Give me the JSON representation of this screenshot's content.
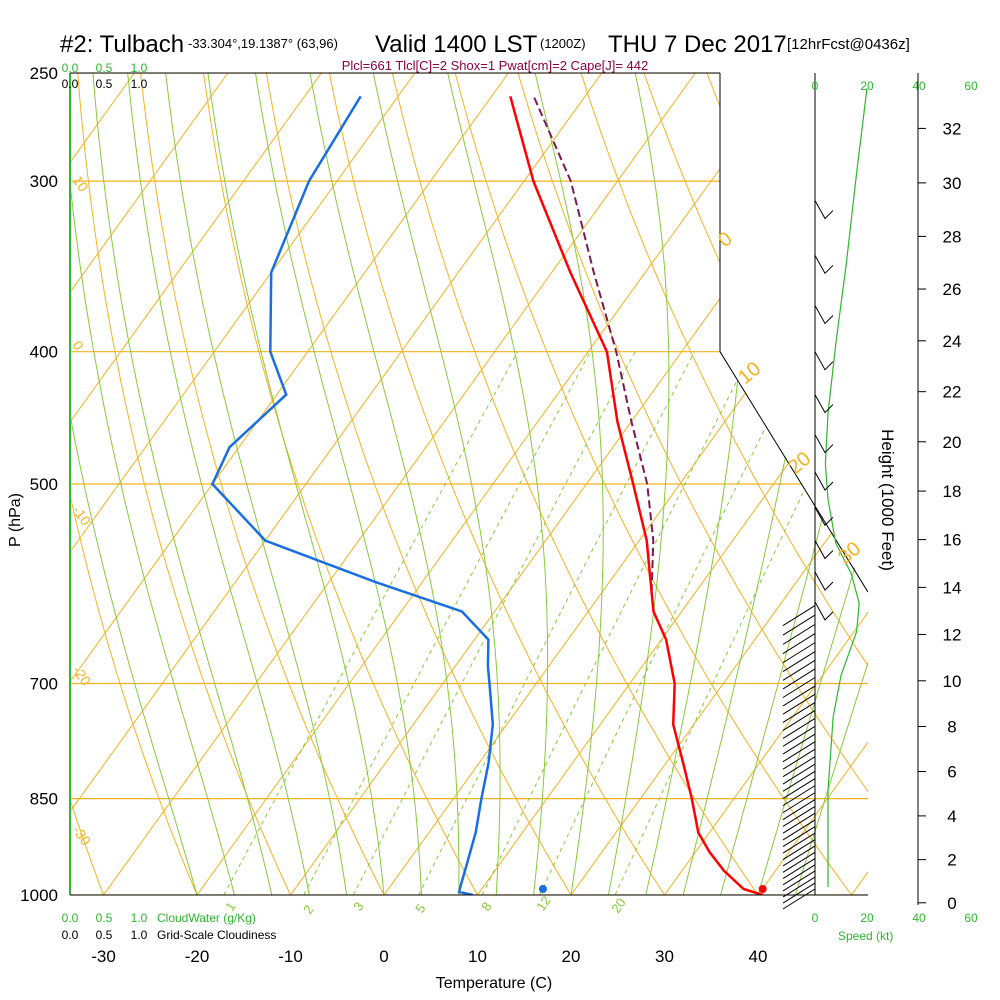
{
  "header": {
    "station": "#2: Tulbach",
    "coords": "-33.304°,19.1387° (63,96)",
    "valid": "Valid 1400 LST",
    "zulu": "(1200Z)",
    "date": "THU 7 Dec 2017",
    "forecast": "[12hrFcst@0436z]"
  },
  "params_line": "Plcl=661 Tlcl[C]=2 Shox=1 Pwat[cm]=2 Cape[J]= 442",
  "colors": {
    "temperature": "#ff0000",
    "dewpoint": "#1a6fe0",
    "parcel": "#7a1a52",
    "isotherm": "#f3b221",
    "dry_adiabat": "#f3b221",
    "moist_adiabat": "#88c93a",
    "cloud_green": "#2db82d"
  },
  "chart_data": {
    "type": "skew-t",
    "title": "#2: Tulbach Valid 1400 LST (1200Z) THU 7 Dec 2017",
    "xlabel": "Temperature (C)",
    "ylabel": "P (hPa)",
    "right_label": "Height (1000 Feet)",
    "x_ticks": [
      -30,
      -20,
      -10,
      0,
      10,
      20,
      30,
      40
    ],
    "p_ticks": [
      250,
      300,
      400,
      500,
      700,
      850,
      1000
    ],
    "height_ticks": [
      0,
      2,
      4,
      6,
      8,
      10,
      12,
      14,
      16,
      18,
      20,
      22,
      24,
      26,
      28,
      30,
      32
    ],
    "cloud_scale_top": [
      "0.0",
      "0.5",
      "1.0"
    ],
    "cloud_scale_top2": [
      "0.0",
      "0.5",
      "1.0"
    ],
    "cloud_scale_bottom": [
      "0.0",
      "0.5",
      "1.0"
    ],
    "cloud_scale_bottom2": [
      "0.0",
      "0.5",
      "1.0"
    ],
    "cloudwater_label": "CloudWater (g/Kg)",
    "cloudiness_label": "Grid-Scale Cloudiness",
    "speed_ticks": [
      "0",
      "20",
      "40",
      "60"
    ],
    "speed_ticks_top": [
      "0",
      "20",
      "40",
      "60"
    ],
    "speed_label": "Speed (kt)",
    "isotherm_labels": [
      "10",
      "0",
      "-10",
      "-20",
      "-30"
    ],
    "dry_labels": [
      "0",
      "10",
      "20",
      "30"
    ],
    "mixing_ratio_labels": [
      "1",
      "2",
      "3",
      "5",
      "8",
      "12",
      "20"
    ],
    "mixing_ratios": [
      1,
      2,
      3,
      5,
      8,
      12,
      20
    ],
    "temperature": [
      {
        "p": 1000,
        "t": 40.5
      },
      {
        "p": 990,
        "t": 38
      },
      {
        "p": 960,
        "t": 34.5
      },
      {
        "p": 930,
        "t": 31.5
      },
      {
        "p": 900,
        "t": 28.8
      },
      {
        "p": 850,
        "t": 25.5
      },
      {
        "p": 800,
        "t": 21.8
      },
      {
        "p": 750,
        "t": 17.8
      },
      {
        "p": 700,
        "t": 14.8
      },
      {
        "p": 650,
        "t": 10.5
      },
      {
        "p": 620,
        "t": 7.0
      },
      {
        "p": 600,
        "t": 5.3
      },
      {
        "p": 550,
        "t": 0.8
      },
      {
        "p": 500,
        "t": -5.0
      },
      {
        "p": 450,
        "t": -11.5
      },
      {
        "p": 400,
        "t": -18.0
      },
      {
        "p": 350,
        "t": -28.0
      },
      {
        "p": 300,
        "t": -39.0
      },
      {
        "p": 260,
        "t": -48.0
      }
    ],
    "dewpoint": [
      {
        "p": 1000,
        "t": 9.5
      },
      {
        "p": 995,
        "t": 7.8
      },
      {
        "p": 985,
        "t": 7.5
      },
      {
        "p": 950,
        "t": 6.5
      },
      {
        "p": 900,
        "t": 5.0
      },
      {
        "p": 850,
        "t": 3.0
      },
      {
        "p": 800,
        "t": 1.0
      },
      {
        "p": 750,
        "t": -1.5
      },
      {
        "p": 700,
        "t": -5.0
      },
      {
        "p": 680,
        "t": -6.5
      },
      {
        "p": 650,
        "t": -8.5
      },
      {
        "p": 620,
        "t": -13.5
      },
      {
        "p": 590,
        "t": -25.0
      },
      {
        "p": 550,
        "t": -40.0
      },
      {
        "p": 500,
        "t": -50.0
      },
      {
        "p": 470,
        "t": -51.0
      },
      {
        "p": 430,
        "t": -49.0
      },
      {
        "p": 400,
        "t": -54.0
      },
      {
        "p": 350,
        "t": -60.0
      },
      {
        "p": 300,
        "t": -63.0
      },
      {
        "p": 260,
        "t": -64.0
      }
    ],
    "parcel": [
      {
        "p": 600,
        "t": 5.3
      },
      {
        "p": 550,
        "t": 1.5
      },
      {
        "p": 500,
        "t": -3.5
      },
      {
        "p": 450,
        "t": -10.0
      },
      {
        "p": 400,
        "t": -17.0
      },
      {
        "p": 350,
        "t": -25.5
      },
      {
        "p": 300,
        "t": -35.0
      },
      {
        "p": 260,
        "t": -45.5
      }
    ],
    "surface_dew_marker": {
      "p": 1000,
      "t": 17.0
    },
    "surface_temp_marker": {
      "p": 1000,
      "t": 40.5
    }
  }
}
